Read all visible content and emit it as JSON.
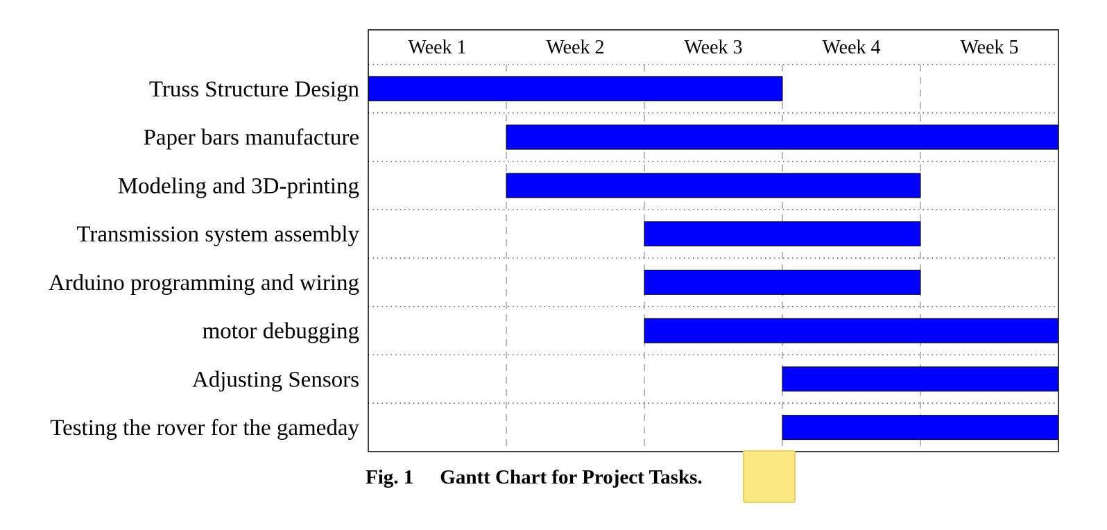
{
  "chart_data": {
    "type": "gantt",
    "time_units": [
      "Week 1",
      "Week 2",
      "Week 3",
      "Week 4",
      "Week 5"
    ],
    "tasks": [
      {
        "name": "Truss Structure Design",
        "start_week": 1,
        "end_week": 3
      },
      {
        "name": "Paper bars manufacture",
        "start_week": 2,
        "end_week": 5
      },
      {
        "name": "Modeling and 3D-printing",
        "start_week": 2,
        "end_week": 4
      },
      {
        "name": "Transmission system assembly",
        "start_week": 3,
        "end_week": 4
      },
      {
        "name": "Arduino programming and wiring",
        "start_week": 3,
        "end_week": 4
      },
      {
        "name": "motor debugging",
        "start_week": 3,
        "end_week": 5
      },
      {
        "name": "Adjusting Sensors",
        "start_week": 4,
        "end_week": 5
      },
      {
        "name": "Testing the rover for the gameday",
        "start_week": 4,
        "end_week": 5
      }
    ],
    "bar_color": "#0000ff",
    "grid": true
  },
  "caption": {
    "figure_number": "Fig. 1",
    "text": "Gantt Chart for Project Tasks."
  },
  "colors": {
    "sticky_note": "#fbe884"
  }
}
